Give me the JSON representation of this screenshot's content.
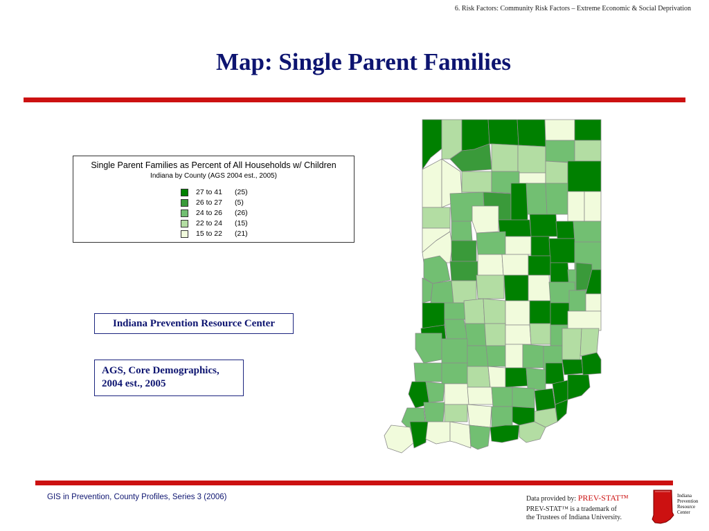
{
  "header": {
    "section": "6.  Risk Factors: Community Risk Factors – Extreme Economic & Social Deprivation"
  },
  "title": "Map:  Single Parent Families",
  "legend": {
    "title": "Single Parent Families as Percent of All Households w/ Children",
    "subtitle": "Indiana by County (AGS 2004 est., 2005)",
    "items": [
      {
        "range": "27 to 41",
        "count": "(25)",
        "color": "#008000"
      },
      {
        "range": "26 to 27",
        "count": "(5)",
        "color": "#3a9a3a"
      },
      {
        "range": "24 to 26",
        "count": "(26)",
        "color": "#72bf72"
      },
      {
        "range": "22 to 24",
        "count": "(15)",
        "color": "#b3dda3"
      },
      {
        "range": "15 to 22",
        "count": "(21)",
        "color": "#f1fbdc"
      }
    ]
  },
  "source_box": "Indiana Prevention Resource Center",
  "data_box": {
    "line1": "AGS, Core Demographics,",
    "line2": "2004 est., 2005"
  },
  "footer": {
    "left": "GIS in Prevention, County Profiles, Series 3 (2006)",
    "data_provided_label": "Data provided by:",
    "brand": "PREV-STAT™",
    "trademark_line1": "PREV-STAT™ is a trademark of",
    "trademark_line2": "the Trustees of Indiana University.",
    "logo_lines": [
      "Indiana",
      "Prevention",
      "Resource",
      "Center"
    ]
  }
}
